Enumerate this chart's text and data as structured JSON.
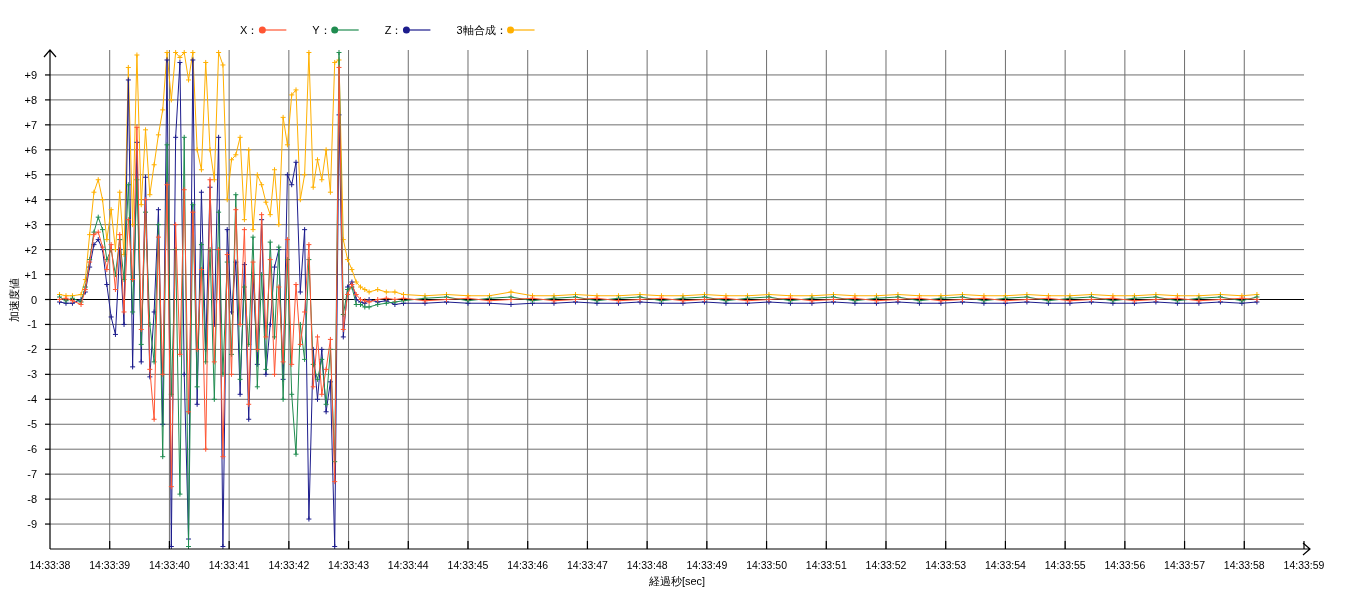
{
  "chart_data": {
    "type": "line",
    "xlabel": "経過秒[sec]",
    "ylabel": "加速度値",
    "x": [
      14.5606,
      14.56063,
      14.56066,
      14.5607,
      14.56072,
      14.56074,
      14.56076,
      14.56078,
      14.5608,
      14.56082,
      14.56084,
      14.56086,
      14.56088,
      14.5609,
      14.56092,
      14.56094,
      14.56096,
      14.56098,
      14.561,
      14.56102,
      14.56104,
      14.56106,
      14.56108,
      14.5611,
      14.56112,
      14.56114,
      14.56116,
      14.56118,
      14.5612,
      14.56122,
      14.56124,
      14.56126,
      14.56128,
      14.5613,
      14.56132,
      14.56134,
      14.56136,
      14.56138,
      14.5614,
      14.56142,
      14.56144,
      14.56146,
      14.56148,
      14.5615,
      14.56152,
      14.56154,
      14.56156,
      14.56158,
      14.5616,
      14.56162,
      14.56164,
      14.56166,
      14.56168,
      14.5617,
      14.56172,
      14.56174,
      14.56176,
      14.56178,
      14.5618,
      14.56182,
      14.56184,
      14.56186,
      14.56188,
      14.5619,
      14.56192,
      14.56194,
      14.56196,
      14.56198,
      14.562,
      14.56202,
      14.56204,
      14.56208,
      14.56212,
      14.56216,
      14.5622,
      14.5623,
      14.5624,
      14.5625,
      14.5626,
      14.5627,
      14.5628,
      14.5629,
      14.563,
      14.5631,
      14.5632,
      14.5633,
      14.5634,
      14.5635,
      14.5636,
      14.5637,
      14.5638,
      14.5639,
      14.564,
      14.5641,
      14.5642,
      14.5643,
      14.5644,
      14.5645,
      14.5646,
      14.5647,
      14.5648,
      14.5649,
      14.565,
      14.5651,
      14.5652,
      14.5653,
      14.5654,
      14.5655,
      14.5656,
      14.5657,
      14.5658,
      14.5659,
      14.566,
      14.5661,
      14.56617
    ],
    "series": [
      {
        "name": "X：",
        "color": "#ff5533",
        "values": [
          0,
          0.05,
          -0.05,
          -0.2,
          0.4,
          1.5,
          2.6,
          2.7,
          2.1,
          1.2,
          2.2,
          0.4,
          2.6,
          -0.5,
          3.2,
          0.8,
          6.9,
          -1.2,
          4.0,
          -2.8,
          -4.8,
          2.5,
          -3.0,
          4.6,
          -7.5,
          3.0,
          -2.2,
          4.4,
          -4.5,
          3.5,
          -2.0,
          1.2,
          -6.0,
          4.8,
          -2.5,
          2.0,
          -6.3,
          1.8,
          -3.0,
          3.6,
          -1.0,
          2.8,
          -4.2,
          1.5,
          -2.0,
          3.4,
          -1.5,
          1.6,
          -3.0,
          0.5,
          -2.5,
          2.4,
          -2.6,
          0.6,
          -1.8,
          -0.5,
          2.2,
          -3.5,
          -1.5,
          -3.8,
          -2.8,
          -1.6,
          -7.3,
          9.3,
          -1.2,
          0.2,
          0.6,
          0.2,
          0,
          -0.05,
          -0.1,
          0,
          0.05,
          0,
          0.05,
          -0.05,
          0,
          0.05,
          -0.05,
          0,
          0.05,
          -0.05,
          0,
          0.05,
          -0.05,
          0,
          0.05,
          -0.05,
          0,
          0.05,
          -0.05,
          0,
          0.05,
          -0.05,
          0,
          0.05,
          -0.05,
          0,
          0.05,
          -0.05,
          0,
          0.05,
          -0.05,
          0,
          0.05,
          -0.05,
          0,
          0.05,
          -0.05,
          0,
          0.05,
          -0.05,
          0,
          0.05,
          0
        ]
      },
      {
        "name": "Y：",
        "color": "#208c50",
        "values": [
          0.1,
          -0.05,
          0.05,
          -0.1,
          0.5,
          1.6,
          2.7,
          3.3,
          2.8,
          1.6,
          2.0,
          1.0,
          2.4,
          0.8,
          4.6,
          -0.5,
          4.8,
          -1.8,
          3.5,
          -1.0,
          -2.5,
          3.0,
          -6.3,
          6.2,
          -3.8,
          2.0,
          -7.8,
          6.5,
          -9.9,
          3.8,
          -3.5,
          2.2,
          -2.5,
          2.0,
          -4.0,
          3.5,
          -3.0,
          1.5,
          -2.2,
          4.2,
          -3.2,
          0.5,
          -1.8,
          2.5,
          -3.5,
          1.0,
          -2.8,
          2.3,
          -1.5,
          2.1,
          -4.0,
          1.6,
          -3.8,
          -6.2,
          -1.0,
          -2.4,
          1.6,
          -2.6,
          -3.2,
          -2.4,
          -4.2,
          -2.0,
          -6.5,
          9.9,
          -0.6,
          0.4,
          0.5,
          -0.2,
          -0.2,
          -0.3,
          -0.3,
          -0.2,
          -0.15,
          -0.1,
          -0.05,
          0.05,
          0.1,
          -0.05,
          0.05,
          0.1,
          -0.05,
          0.05,
          0.1,
          -0.05,
          0.05,
          0.1,
          -0.05,
          0.05,
          0.1,
          -0.05,
          0.05,
          0.1,
          -0.05,
          0.05,
          0.1,
          -0.05,
          0.05,
          0.1,
          -0.05,
          0.05,
          0.1,
          -0.05,
          0.05,
          0.1,
          -0.05,
          0.05,
          0.1,
          -0.05,
          0.05,
          0.1,
          -0.05,
          0.05,
          0.1,
          -0.05,
          0.1
        ]
      },
      {
        "name": "Z：",
        "color": "#1c1c8c",
        "values": [
          -0.1,
          -0.15,
          -0.15,
          0,
          0.3,
          1.3,
          2.2,
          2.4,
          2.0,
          0.6,
          -0.7,
          -1.4,
          2.0,
          -1.0,
          8.8,
          -2.7,
          6.3,
          -2.5,
          4.9,
          -3.1,
          -0.5,
          3.6,
          -5.0,
          9.6,
          -9.9,
          6.5,
          9.5,
          -3.0,
          -9.6,
          9.6,
          -4.2,
          4.3,
          -2.0,
          4.5,
          -1.0,
          6.5,
          -9.9,
          2.8,
          -0.5,
          1.5,
          -3.8,
          1.4,
          -4.8,
          1.0,
          -2.6,
          3.2,
          -3.0,
          -1.0,
          1.3,
          2.0,
          -3.2,
          5.0,
          4.6,
          5.5,
          0.3,
          2.8,
          -8.8,
          -2.0,
          -4.0,
          -2.0,
          -4.5,
          -3.3,
          -9.9,
          7.4,
          -1.5,
          0.5,
          0.7,
          0,
          -0.1,
          -0.15,
          0,
          -0.1,
          -0.05,
          -0.2,
          -0.15,
          -0.15,
          -0.1,
          -0.15,
          -0.15,
          -0.2,
          -0.15,
          -0.15,
          -0.1,
          -0.15,
          -0.15,
          -0.1,
          -0.15,
          -0.15,
          -0.1,
          -0.15,
          -0.15,
          -0.1,
          -0.15,
          -0.15,
          -0.1,
          -0.15,
          -0.15,
          -0.1,
          -0.15,
          -0.15,
          -0.1,
          -0.15,
          -0.15,
          -0.1,
          -0.15,
          -0.15,
          -0.1,
          -0.15,
          -0.15,
          -0.1,
          -0.15,
          -0.15,
          -0.1,
          -0.15,
          -0.1
        ]
      },
      {
        "name": "3軸合成：",
        "color": "#ffb000",
        "values": [
          0.2,
          0.15,
          0.15,
          0.2,
          0.8,
          2.6,
          4.3,
          4.8,
          4.0,
          2.4,
          3.6,
          2.0,
          4.3,
          1.8,
          9.3,
          3.0,
          9.8,
          3.8,
          6.8,
          4.2,
          5.4,
          6.6,
          7.6,
          9.9,
          8.0,
          9.9,
          9.7,
          9.9,
          8.8,
          9.9,
          6.0,
          5.2,
          9.5,
          6.0,
          4.8,
          9.9,
          9.4,
          4.0,
          5.6,
          5.8,
          6.5,
          3.2,
          6.0,
          2.8,
          5.0,
          4.6,
          3.9,
          3.4,
          5.2,
          3.0,
          7.3,
          6.2,
          8.2,
          8.4,
          4.0,
          5.0,
          9.9,
          4.5,
          5.6,
          4.8,
          6.0,
          4.3,
          9.5,
          9.6,
          2.4,
          1.6,
          1.2,
          0.7,
          0.5,
          0.4,
          0.3,
          0.4,
          0.3,
          0.3,
          0.2,
          0.15,
          0.2,
          0.15,
          0.15,
          0.3,
          0.15,
          0.15,
          0.2,
          0.15,
          0.15,
          0.2,
          0.15,
          0.15,
          0.2,
          0.15,
          0.15,
          0.2,
          0.15,
          0.15,
          0.2,
          0.15,
          0.15,
          0.2,
          0.15,
          0.15,
          0.2,
          0.15,
          0.15,
          0.2,
          0.15,
          0.15,
          0.2,
          0.15,
          0.15,
          0.2,
          0.15,
          0.15,
          0.2,
          0.15,
          0.2
        ]
      }
    ],
    "xlim": [
      14.5605556,
      14.5663889
    ],
    "xticks": [
      {
        "value": 14.5605556,
        "label": "14:33:38"
      },
      {
        "value": 14.5608333,
        "label": "14:33:39"
      },
      {
        "value": 14.5611111,
        "label": "14:33:40"
      },
      {
        "value": 14.5613889,
        "label": "14:33:41"
      },
      {
        "value": 14.5616667,
        "label": "14:33:42"
      },
      {
        "value": 14.5619444,
        "label": "14:33:43"
      },
      {
        "value": 14.5622222,
        "label": "14:33:44"
      },
      {
        "value": 14.5625,
        "label": "14:33:45"
      },
      {
        "value": 14.5627778,
        "label": "14:33:46"
      },
      {
        "value": 14.5630556,
        "label": "14:33:47"
      },
      {
        "value": 14.5633333,
        "label": "14:33:48"
      },
      {
        "value": 14.5636111,
        "label": "14:33:49"
      },
      {
        "value": 14.5638889,
        "label": "14:33:50"
      },
      {
        "value": 14.5641667,
        "label": "14:33:51"
      },
      {
        "value": 14.5644444,
        "label": "14:33:52"
      },
      {
        "value": 14.5647222,
        "label": "14:33:53"
      },
      {
        "value": 14.565,
        "label": "14:33:54"
      },
      {
        "value": 14.5652778,
        "label": "14:33:55"
      },
      {
        "value": 14.5655556,
        "label": "14:33:56"
      },
      {
        "value": 14.5658333,
        "label": "14:33:57"
      },
      {
        "value": 14.5661111,
        "label": "14:33:58"
      },
      {
        "value": 14.5663889,
        "label": "14:33:59"
      }
    ],
    "ylim": [
      -10,
      10
    ],
    "yticks": [
      {
        "value": 9,
        "label": "+9"
      },
      {
        "value": 8,
        "label": "+8"
      },
      {
        "value": 7,
        "label": "+7"
      },
      {
        "value": 6,
        "label": "+6"
      },
      {
        "value": 5,
        "label": "+5"
      },
      {
        "value": 4,
        "label": "+4"
      },
      {
        "value": 3,
        "label": "+3"
      },
      {
        "value": 2,
        "label": "+2"
      },
      {
        "value": 1,
        "label": "+1"
      },
      0,
      -1,
      -2,
      -3,
      -4,
      -5,
      -6,
      -7,
      -8,
      -9
    ],
    "grid": true,
    "legend": "top left",
    "marker": "cross",
    "ref_lines": [
      {
        "axis": "y",
        "value": 0,
        "color": "#000000"
      }
    ]
  }
}
